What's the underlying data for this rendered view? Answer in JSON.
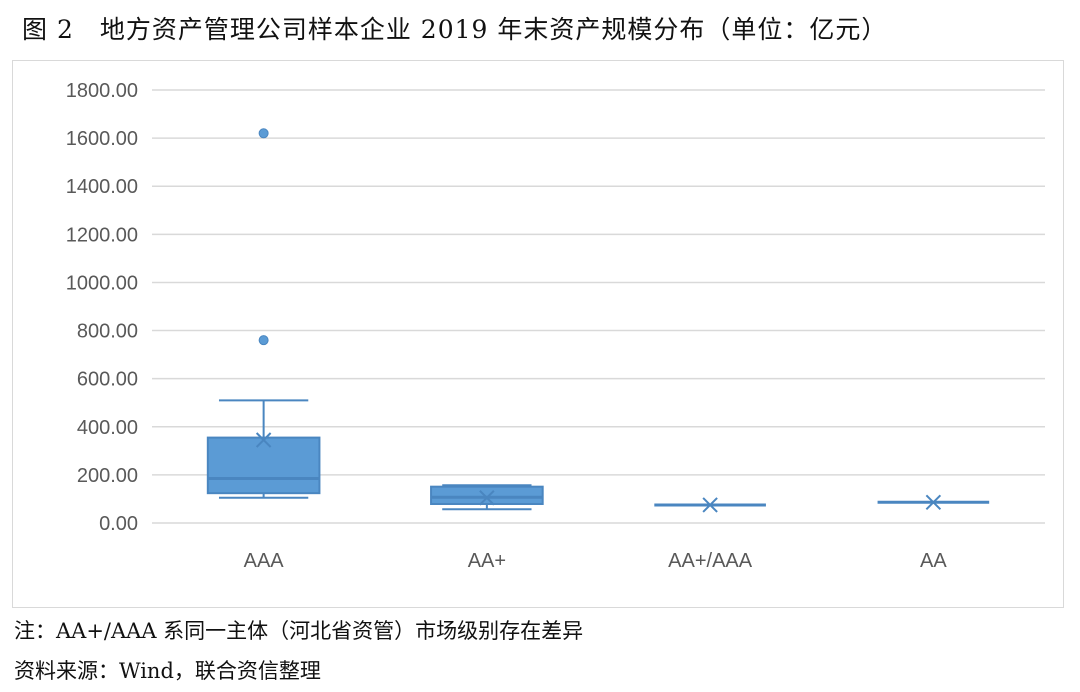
{
  "title": "图 2　地方资产管理公司样本企业 2019 年末资产规模分布（单位：亿元）",
  "note": "注：AA+/AAA 系同一主体（河北省资管）市场级别存在差异",
  "source": "资料来源：Wind，联合资信整理",
  "chart_data": {
    "type": "box",
    "title": "",
    "xlabel": "",
    "ylabel": "",
    "ylim": [
      0,
      1800
    ],
    "yticks": [
      "0.00",
      "200.00",
      "400.00",
      "600.00",
      "800.00",
      "1000.00",
      "1200.00",
      "1400.00",
      "1600.00",
      "1800.00"
    ],
    "grid": true,
    "color": "#5b9bd5",
    "categories": [
      "AAA",
      "AA+",
      "AA+/AAA",
      "AA"
    ],
    "boxes": [
      {
        "category": "AAA",
        "min": 105,
        "q1": 124,
        "median": 185,
        "q3": 355,
        "max": 510,
        "mean": 345,
        "outliers": [
          760,
          1620
        ]
      },
      {
        "category": "AA+",
        "min": 57,
        "q1": 79,
        "median": 107,
        "q3": 151,
        "max": 157,
        "mean": 105,
        "outliers": []
      },
      {
        "category": "AA+/AAA",
        "min": 75,
        "q1": 75,
        "median": 75,
        "q3": 75,
        "max": 75,
        "mean": 75,
        "outliers": []
      },
      {
        "category": "AA",
        "min": 86,
        "q1": 86,
        "median": 86,
        "q3": 86,
        "max": 86,
        "mean": 86,
        "outliers": []
      }
    ]
  }
}
